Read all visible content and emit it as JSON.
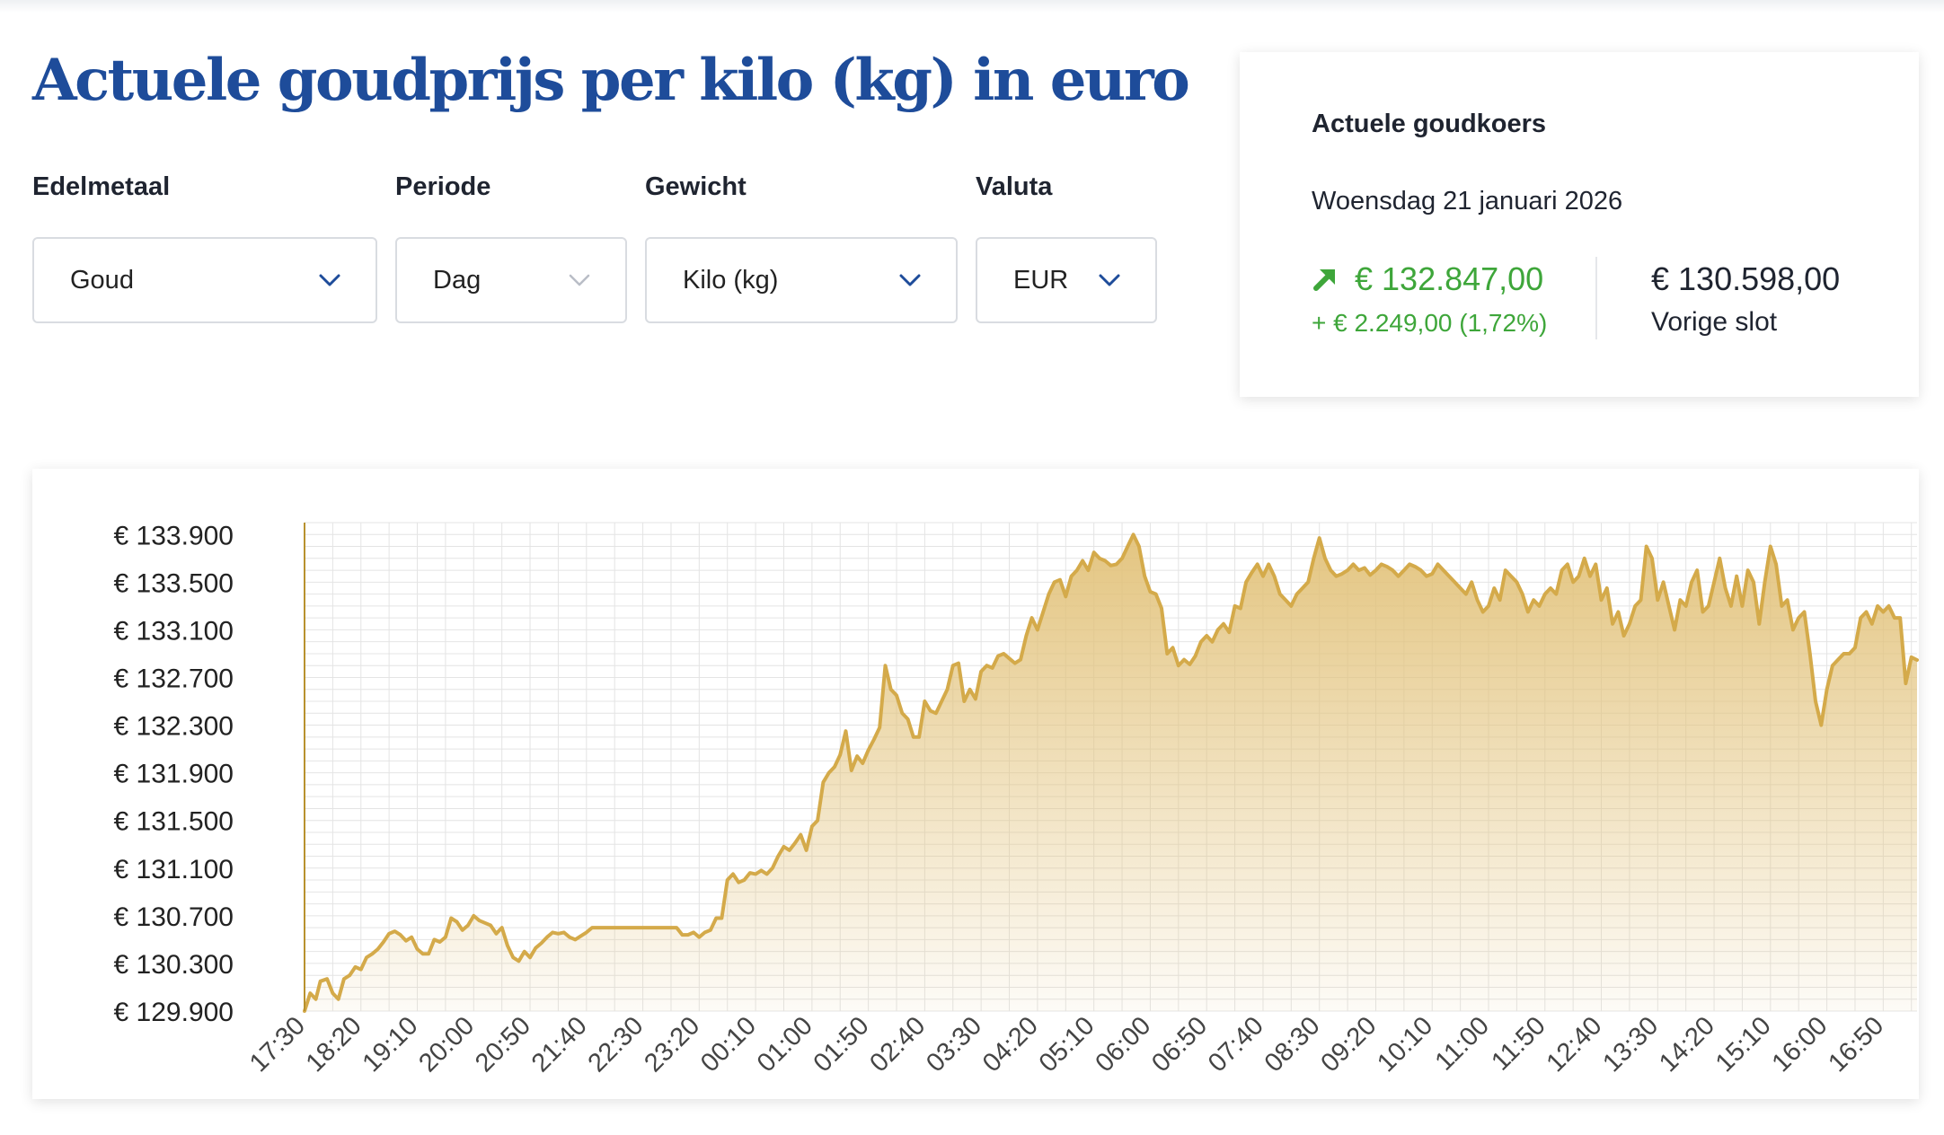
{
  "page_title": "Actuele goudprijs per kilo (kg) in euro",
  "filters": {
    "metal": {
      "label": "Edelmetaal",
      "value": "Goud"
    },
    "period": {
      "label": "Periode",
      "value": "Dag"
    },
    "weight": {
      "label": "Gewicht",
      "value": "Kilo (kg)"
    },
    "currency": {
      "label": "Valuta",
      "value": "EUR"
    }
  },
  "rate_card": {
    "title": "Actuele goudkoers",
    "date": "Woensdag 21 januari 2026",
    "current_value": "€ 132.847,00",
    "change": "+ € 2.249,00 (1,72%)",
    "previous_close_value": "€ 130.598,00",
    "previous_close_label": "Vorige slot",
    "direction_icon": "arrow-up-right-icon"
  },
  "colors": {
    "title_blue": "#1e4c9a",
    "gain_green": "#3ea63a",
    "line_gold": "#d4aa4a",
    "fill_gold": "#e2c27a",
    "axis_gold": "#b8912e",
    "grid": "#e4e4e4"
  },
  "chart_data": {
    "type": "area",
    "title": "",
    "xlabel": "",
    "ylabel": "",
    "grid": true,
    "y_tick_labels": [
      "€ 129.900",
      "€ 130.300",
      "€ 130.700",
      "€ 131.100",
      "€ 131.500",
      "€ 131.900",
      "€ 132.300",
      "€ 132.700",
      "€ 133.100",
      "€ 133.500",
      "€ 133.900"
    ],
    "y_ticks": [
      129900,
      130300,
      130700,
      131100,
      131500,
      131900,
      132300,
      132700,
      133100,
      133500,
      133900
    ],
    "ylim": [
      129900,
      134000
    ],
    "x_tick_labels": [
      "17:30",
      "18:20",
      "19:10",
      "20:00",
      "20:50",
      "21:40",
      "22:30",
      "23:20",
      "00:10",
      "01:00",
      "01:50",
      "02:40",
      "03:30",
      "04:20",
      "05:10",
      "06:00",
      "06:50",
      "07:40",
      "08:30",
      "09:20",
      "10:10",
      "11:00",
      "11:50",
      "12:40",
      "13:30",
      "14:20",
      "15:10",
      "16:00",
      "16:50"
    ],
    "x_tick_minutes": [
      0,
      50,
      100,
      150,
      200,
      250,
      300,
      350,
      400,
      450,
      500,
      550,
      600,
      650,
      700,
      750,
      800,
      850,
      900,
      950,
      1000,
      1050,
      1100,
      1150,
      1200,
      1250,
      1300,
      1350,
      1400
    ],
    "xlim_minutes": [
      0,
      1430
    ],
    "series": [
      {
        "points": [
          [
            0,
            129900
          ],
          [
            5,
            130050
          ],
          [
            10,
            130000
          ],
          [
            14,
            130150
          ],
          [
            20,
            130170
          ],
          [
            25,
            130050
          ],
          [
            30,
            130000
          ],
          [
            35,
            130170
          ],
          [
            40,
            130200
          ],
          [
            45,
            130270
          ],
          [
            50,
            130250
          ],
          [
            55,
            130350
          ],
          [
            60,
            130380
          ],
          [
            65,
            130420
          ],
          [
            70,
            130480
          ],
          [
            75,
            130550
          ],
          [
            80,
            130570
          ],
          [
            85,
            130540
          ],
          [
            90,
            130490
          ],
          [
            95,
            130520
          ],
          [
            100,
            130420
          ],
          [
            105,
            130380
          ],
          [
            110,
            130380
          ],
          [
            115,
            130500
          ],
          [
            120,
            130480
          ],
          [
            125,
            130520
          ],
          [
            130,
            130680
          ],
          [
            135,
            130650
          ],
          [
            140,
            130580
          ],
          [
            145,
            130620
          ],
          [
            150,
            130700
          ],
          [
            155,
            130660
          ],
          [
            160,
            130640
          ],
          [
            165,
            130620
          ],
          [
            170,
            130550
          ],
          [
            175,
            130600
          ],
          [
            180,
            130450
          ],
          [
            185,
            130350
          ],
          [
            190,
            130320
          ],
          [
            195,
            130400
          ],
          [
            200,
            130350
          ],
          [
            205,
            130430
          ],
          [
            210,
            130470
          ],
          [
            215,
            130520
          ],
          [
            220,
            130560
          ],
          [
            225,
            130550
          ],
          [
            230,
            130560
          ],
          [
            235,
            130520
          ],
          [
            240,
            130500
          ],
          [
            245,
            130530
          ],
          [
            250,
            130560
          ],
          [
            255,
            130600
          ],
          [
            260,
            130600
          ],
          [
            265,
            130600
          ],
          [
            270,
            130600
          ],
          [
            275,
            130600
          ],
          [
            280,
            130600
          ],
          [
            285,
            130600
          ],
          [
            290,
            130600
          ],
          [
            295,
            130600
          ],
          [
            300,
            130600
          ],
          [
            305,
            130600
          ],
          [
            310,
            130600
          ],
          [
            315,
            130600
          ],
          [
            320,
            130600
          ],
          [
            325,
            130600
          ],
          [
            330,
            130600
          ],
          [
            335,
            130540
          ],
          [
            340,
            130540
          ],
          [
            345,
            130560
          ],
          [
            350,
            130520
          ],
          [
            355,
            130560
          ],
          [
            360,
            130580
          ],
          [
            365,
            130680
          ],
          [
            370,
            130680
          ],
          [
            375,
            131000
          ],
          [
            380,
            131050
          ],
          [
            385,
            130980
          ],
          [
            390,
            131000
          ],
          [
            395,
            131060
          ],
          [
            400,
            131050
          ],
          [
            405,
            131080
          ],
          [
            410,
            131050
          ],
          [
            415,
            131100
          ],
          [
            420,
            131200
          ],
          [
            425,
            131280
          ],
          [
            430,
            131250
          ],
          [
            435,
            131310
          ],
          [
            440,
            131380
          ],
          [
            445,
            131250
          ],
          [
            450,
            131450
          ],
          [
            455,
            131500
          ],
          [
            460,
            131820
          ],
          [
            465,
            131900
          ],
          [
            470,
            131950
          ],
          [
            475,
            132050
          ],
          [
            480,
            132250
          ],
          [
            485,
            131920
          ],
          [
            490,
            132040
          ],
          [
            495,
            131980
          ],
          [
            500,
            132090
          ],
          [
            505,
            132180
          ],
          [
            510,
            132280
          ],
          [
            515,
            132800
          ],
          [
            520,
            132600
          ],
          [
            525,
            132550
          ],
          [
            530,
            132400
          ],
          [
            535,
            132350
          ],
          [
            540,
            132200
          ],
          [
            545,
            132200
          ],
          [
            550,
            132500
          ],
          [
            555,
            132420
          ],
          [
            560,
            132400
          ],
          [
            565,
            132500
          ],
          [
            570,
            132600
          ],
          [
            575,
            132800
          ],
          [
            580,
            132820
          ],
          [
            585,
            132500
          ],
          [
            590,
            132600
          ],
          [
            595,
            132520
          ],
          [
            600,
            132750
          ],
          [
            605,
            132800
          ],
          [
            610,
            132780
          ],
          [
            615,
            132880
          ],
          [
            620,
            132900
          ],
          [
            625,
            132860
          ],
          [
            630,
            132820
          ],
          [
            635,
            132850
          ],
          [
            640,
            133050
          ],
          [
            645,
            133200
          ],
          [
            650,
            133100
          ],
          [
            655,
            133250
          ],
          [
            660,
            133400
          ],
          [
            665,
            133500
          ],
          [
            670,
            133520
          ],
          [
            675,
            133380
          ],
          [
            680,
            133550
          ],
          [
            685,
            133600
          ],
          [
            690,
            133680
          ],
          [
            695,
            133600
          ],
          [
            700,
            133750
          ],
          [
            705,
            133700
          ],
          [
            710,
            133680
          ],
          [
            715,
            133640
          ],
          [
            720,
            133650
          ],
          [
            725,
            133700
          ],
          [
            730,
            133800
          ],
          [
            735,
            133900
          ],
          [
            740,
            133800
          ],
          [
            745,
            133550
          ],
          [
            750,
            133420
          ],
          [
            755,
            133400
          ],
          [
            760,
            133280
          ],
          [
            765,
            132900
          ],
          [
            770,
            132950
          ],
          [
            775,
            132800
          ],
          [
            780,
            132850
          ],
          [
            785,
            132810
          ],
          [
            790,
            132880
          ],
          [
            795,
            133000
          ],
          [
            800,
            133050
          ],
          [
            805,
            133000
          ],
          [
            810,
            133100
          ],
          [
            815,
            133150
          ],
          [
            820,
            133080
          ],
          [
            825,
            133300
          ],
          [
            830,
            133280
          ],
          [
            835,
            133500
          ],
          [
            840,
            133580
          ],
          [
            845,
            133650
          ],
          [
            850,
            133550
          ],
          [
            855,
            133650
          ],
          [
            860,
            133550
          ],
          [
            865,
            133400
          ],
          [
            870,
            133350
          ],
          [
            875,
            133300
          ],
          [
            880,
            133400
          ],
          [
            885,
            133450
          ],
          [
            890,
            133500
          ],
          [
            895,
            133700
          ],
          [
            900,
            133870
          ],
          [
            905,
            133700
          ],
          [
            910,
            133600
          ],
          [
            915,
            133550
          ],
          [
            920,
            133570
          ],
          [
            925,
            133600
          ],
          [
            930,
            133650
          ],
          [
            935,
            133600
          ],
          [
            940,
            133620
          ],
          [
            945,
            133560
          ],
          [
            950,
            133600
          ],
          [
            955,
            133650
          ],
          [
            960,
            133630
          ],
          [
            965,
            133600
          ],
          [
            970,
            133550
          ],
          [
            975,
            133600
          ],
          [
            980,
            133650
          ],
          [
            985,
            133630
          ],
          [
            990,
            133600
          ],
          [
            995,
            133550
          ],
          [
            1000,
            133570
          ],
          [
            1005,
            133650
          ],
          [
            1010,
            133600
          ],
          [
            1015,
            133550
          ],
          [
            1020,
            133500
          ],
          [
            1025,
            133450
          ],
          [
            1030,
            133400
          ],
          [
            1035,
            133500
          ],
          [
            1040,
            133350
          ],
          [
            1045,
            133250
          ],
          [
            1050,
            133300
          ],
          [
            1055,
            133450
          ],
          [
            1060,
            133350
          ],
          [
            1065,
            133600
          ],
          [
            1070,
            133550
          ],
          [
            1075,
            133500
          ],
          [
            1080,
            133400
          ],
          [
            1085,
            133250
          ],
          [
            1090,
            133350
          ],
          [
            1095,
            133300
          ],
          [
            1100,
            133400
          ],
          [
            1105,
            133450
          ],
          [
            1110,
            133400
          ],
          [
            1115,
            133600
          ],
          [
            1120,
            133650
          ],
          [
            1125,
            133500
          ],
          [
            1130,
            133550
          ],
          [
            1135,
            133700
          ],
          [
            1140,
            133550
          ],
          [
            1145,
            133650
          ],
          [
            1150,
            133350
          ],
          [
            1155,
            133450
          ],
          [
            1160,
            133150
          ],
          [
            1165,
            133250
          ],
          [
            1170,
            133050
          ],
          [
            1175,
            133150
          ],
          [
            1180,
            133300
          ],
          [
            1185,
            133350
          ],
          [
            1190,
            133800
          ],
          [
            1195,
            133700
          ],
          [
            1200,
            133350
          ],
          [
            1205,
            133500
          ],
          [
            1210,
            133300
          ],
          [
            1215,
            133100
          ],
          [
            1220,
            133350
          ],
          [
            1225,
            133300
          ],
          [
            1230,
            133500
          ],
          [
            1235,
            133600
          ],
          [
            1240,
            133250
          ],
          [
            1245,
            133300
          ],
          [
            1250,
            133500
          ],
          [
            1255,
            133700
          ],
          [
            1260,
            133450
          ],
          [
            1265,
            133300
          ],
          [
            1270,
            133550
          ],
          [
            1275,
            133300
          ],
          [
            1280,
            133600
          ],
          [
            1285,
            133500
          ],
          [
            1290,
            133150
          ],
          [
            1295,
            133500
          ],
          [
            1300,
            133800
          ],
          [
            1305,
            133650
          ],
          [
            1310,
            133300
          ],
          [
            1315,
            133350
          ],
          [
            1320,
            133100
          ],
          [
            1325,
            133200
          ],
          [
            1330,
            133250
          ],
          [
            1335,
            132900
          ],
          [
            1340,
            132500
          ],
          [
            1345,
            132300
          ],
          [
            1350,
            132600
          ],
          [
            1355,
            132800
          ],
          [
            1360,
            132850
          ],
          [
            1365,
            132900
          ],
          [
            1370,
            132900
          ],
          [
            1375,
            132950
          ],
          [
            1380,
            133200
          ],
          [
            1385,
            133250
          ],
          [
            1390,
            133150
          ],
          [
            1395,
            133300
          ],
          [
            1400,
            133250
          ],
          [
            1405,
            133300
          ],
          [
            1410,
            133200
          ],
          [
            1415,
            133200
          ],
          [
            1420,
            132650
          ],
          [
            1425,
            132870
          ],
          [
            1430,
            132847
          ]
        ]
      }
    ]
  }
}
